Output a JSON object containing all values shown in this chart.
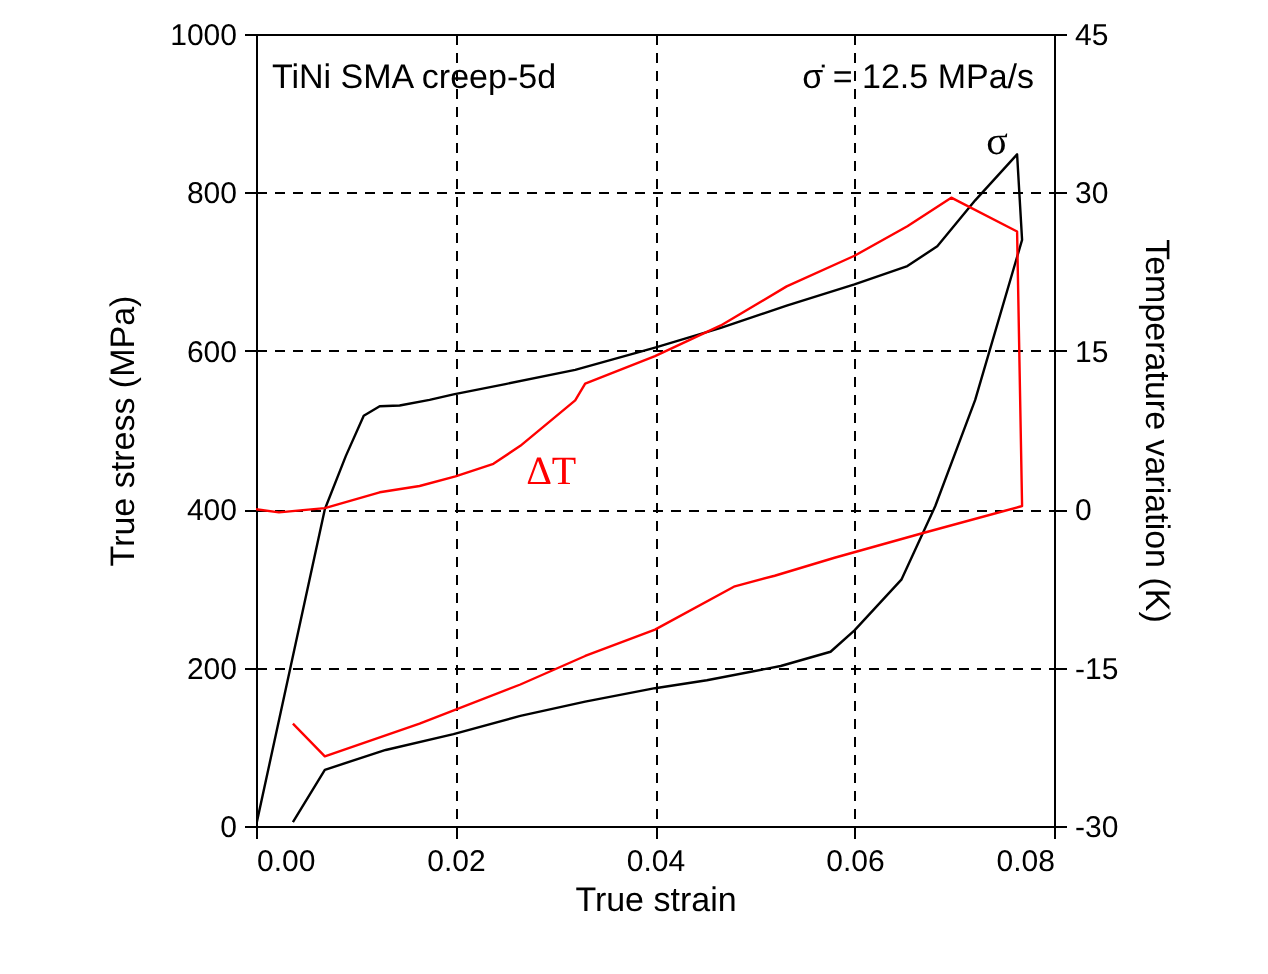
{
  "chart_data": {
    "type": "line",
    "xlabel": "True strain",
    "ylabel": "True stress (MPa)",
    "y2label": "Temperature variation (K)",
    "xlim": [
      0,
      0.08
    ],
    "xticks": [
      {
        "value": 0,
        "label": "0.00"
      },
      {
        "value": 0.02,
        "label": "0.02"
      },
      {
        "value": 0.04,
        "label": "0.04"
      },
      {
        "value": 0.06,
        "label": "0.06"
      },
      {
        "value": 0.08,
        "label": "0.08"
      }
    ],
    "ylim": [
      0,
      1000
    ],
    "yticks": [
      0,
      200,
      400,
      600,
      800,
      1000
    ],
    "y2lim": [
      -30,
      45
    ],
    "y2ticks": [
      -30,
      -15,
      0,
      15,
      30,
      45
    ],
    "grid": true,
    "line_style": "solid",
    "annotations": [
      "TiNi SMA creep-5d",
      "σ̇ = 12.5 MPa/s"
    ],
    "series": [
      {
        "name": "σ",
        "color": "#000000",
        "x": [
          0,
          0.0069,
          0.009,
          0.0108,
          0.0124,
          0.0144,
          0.0174,
          0.0198,
          0.025,
          0.032,
          0.04,
          0.0466,
          0.0532,
          0.06,
          0.0653,
          0.0683,
          0.0721,
          0.0763,
          0.0768,
          0.0721,
          0.0681,
          0.0647,
          0.06,
          0.0576,
          0.0526,
          0.0452,
          0.04,
          0.033,
          0.0265,
          0.0198,
          0.013,
          0.0069,
          0.0037
        ],
        "values": [
          0,
          400,
          467,
          518,
          530,
          531,
          538,
          545,
          558,
          576,
          604,
          629,
          657,
          684,
          707,
          732,
          790,
          848,
          740,
          538,
          404,
          311,
          247,
          220,
          202,
          184,
          174,
          157,
          139,
          116,
          96,
          71,
          5
        ]
      },
      {
        "name": "ΔT",
        "color": "#ff0000",
        "axis": "y2",
        "x": [
          0,
          0.0023,
          0.0069,
          0.0124,
          0.0164,
          0.02,
          0.0238,
          0.0265,
          0.032,
          0.033,
          0.04,
          0.0466,
          0.0532,
          0.06,
          0.0653,
          0.0697,
          0.0763,
          0.0768,
          0.0667,
          0.058,
          0.052,
          0.048,
          0.04,
          0.033,
          0.0265,
          0.0164,
          0.0069,
          0.0037
        ],
        "values": [
          0,
          -0.3,
          0.1,
          1.6,
          2.2,
          3.1,
          4.3,
          6.0,
          10.3,
          11.9,
          14.5,
          17.4,
          21.1,
          24.0,
          26.8,
          29.5,
          26.3,
          0.3,
          -2.3,
          -4.6,
          -6.3,
          -7.3,
          -11.4,
          -13.9,
          -16.6,
          -20.3,
          -23.4,
          -20.3
        ]
      }
    ]
  }
}
